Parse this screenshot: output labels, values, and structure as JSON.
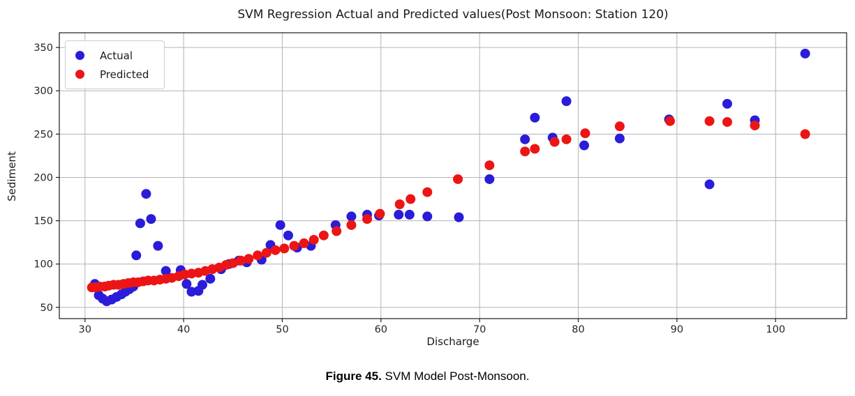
{
  "title": "SVM Regression Actual and Predicted values(Post Monsoon: Station 120)",
  "caption": {
    "prefix": "Figure 45.",
    "text": " SVM Model Post-Monsoon."
  },
  "colors": {
    "actual": "#2a1cd8",
    "predicted": "#ec1515",
    "grid": "#b3b3b3",
    "spine": "#1a1a1a",
    "legend_border": "#cccccc"
  },
  "chart_data": {
    "type": "scatter",
    "title": "SVM Regression Actual and Predicted values(Post Monsoon: Station 120)",
    "xlabel": "Discharge",
    "ylabel": "Sediment",
    "xlim": [
      27.4,
      107.2
    ],
    "ylim": [
      37,
      367
    ],
    "x_ticks": [
      30,
      40,
      50,
      60,
      70,
      80,
      90,
      100
    ],
    "y_ticks": [
      50,
      100,
      150,
      200,
      250,
      300,
      350
    ],
    "grid": true,
    "legend": {
      "position": "upper-left",
      "entries": [
        {
          "label": "Actual",
          "color": "#2a1cd8"
        },
        {
          "label": "Predicted",
          "color": "#ec1515"
        }
      ]
    },
    "series": [
      {
        "name": "Actual",
        "color": "#2a1cd8",
        "marker": "circle",
        "points": [
          [
            31.0,
            77
          ],
          [
            31.4,
            64
          ],
          [
            31.8,
            60
          ],
          [
            32.2,
            57
          ],
          [
            32.7,
            59
          ],
          [
            33.2,
            62
          ],
          [
            33.7,
            65
          ],
          [
            34.1,
            68
          ],
          [
            34.5,
            71
          ],
          [
            34.9,
            74
          ],
          [
            35.2,
            110
          ],
          [
            35.6,
            147
          ],
          [
            36.2,
            181
          ],
          [
            36.7,
            152
          ],
          [
            37.4,
            121
          ],
          [
            38.2,
            92
          ],
          [
            39.7,
            93
          ],
          [
            40.3,
            77
          ],
          [
            40.8,
            68
          ],
          [
            41.5,
            69
          ],
          [
            41.9,
            76
          ],
          [
            42.7,
            83
          ],
          [
            43.8,
            94
          ],
          [
            44.6,
            100
          ],
          [
            45.6,
            104
          ],
          [
            46.4,
            102
          ],
          [
            47.9,
            105
          ],
          [
            48.8,
            122
          ],
          [
            49.8,
            145
          ],
          [
            50.6,
            133
          ],
          [
            51.5,
            119
          ],
          [
            52.9,
            121
          ],
          [
            55.4,
            145
          ],
          [
            57.0,
            155
          ],
          [
            58.6,
            157
          ],
          [
            59.8,
            156
          ],
          [
            61.8,
            157
          ],
          [
            62.9,
            157
          ],
          [
            64.7,
            155
          ],
          [
            67.9,
            154
          ],
          [
            71.0,
            198
          ],
          [
            74.6,
            244
          ],
          [
            75.6,
            269
          ],
          [
            77.4,
            246
          ],
          [
            78.8,
            288
          ],
          [
            80.6,
            237
          ],
          [
            84.2,
            245
          ],
          [
            89.2,
            267
          ],
          [
            93.3,
            192
          ],
          [
            95.1,
            285
          ],
          [
            97.9,
            266
          ],
          [
            103.0,
            343
          ]
        ]
      },
      {
        "name": "Predicted",
        "color": "#ec1515",
        "marker": "circle",
        "points": [
          [
            30.7,
            73
          ],
          [
            31.1,
            73
          ],
          [
            31.5,
            74
          ],
          [
            32.0,
            74
          ],
          [
            32.4,
            75
          ],
          [
            32.9,
            76
          ],
          [
            33.4,
            76
          ],
          [
            33.9,
            77
          ],
          [
            34.4,
            78
          ],
          [
            34.9,
            79
          ],
          [
            35.4,
            79
          ],
          [
            35.9,
            80
          ],
          [
            36.4,
            81
          ],
          [
            37.0,
            81
          ],
          [
            37.6,
            82
          ],
          [
            38.2,
            83
          ],
          [
            38.8,
            84
          ],
          [
            39.5,
            86
          ],
          [
            40.1,
            88
          ],
          [
            40.8,
            89
          ],
          [
            41.5,
            90
          ],
          [
            42.2,
            92
          ],
          [
            42.9,
            94
          ],
          [
            43.6,
            96
          ],
          [
            44.3,
            99
          ],
          [
            45.0,
            101
          ],
          [
            45.8,
            104
          ],
          [
            46.6,
            106
          ],
          [
            47.5,
            110
          ],
          [
            48.4,
            113
          ],
          [
            49.3,
            116
          ],
          [
            50.2,
            118
          ],
          [
            51.2,
            121
          ],
          [
            52.2,
            124
          ],
          [
            53.2,
            128
          ],
          [
            54.2,
            133
          ],
          [
            55.5,
            138
          ],
          [
            57.0,
            145
          ],
          [
            58.6,
            152
          ],
          [
            59.9,
            158
          ],
          [
            61.9,
            169
          ],
          [
            63.0,
            175
          ],
          [
            64.7,
            183
          ],
          [
            67.8,
            198
          ],
          [
            71.0,
            214
          ],
          [
            74.6,
            230
          ],
          [
            75.6,
            233
          ],
          [
            77.6,
            241
          ],
          [
            78.8,
            244
          ],
          [
            80.7,
            251
          ],
          [
            84.2,
            259
          ],
          [
            89.3,
            265
          ],
          [
            93.3,
            265
          ],
          [
            95.1,
            264
          ],
          [
            97.9,
            260
          ],
          [
            103.0,
            250
          ]
        ]
      }
    ]
  }
}
